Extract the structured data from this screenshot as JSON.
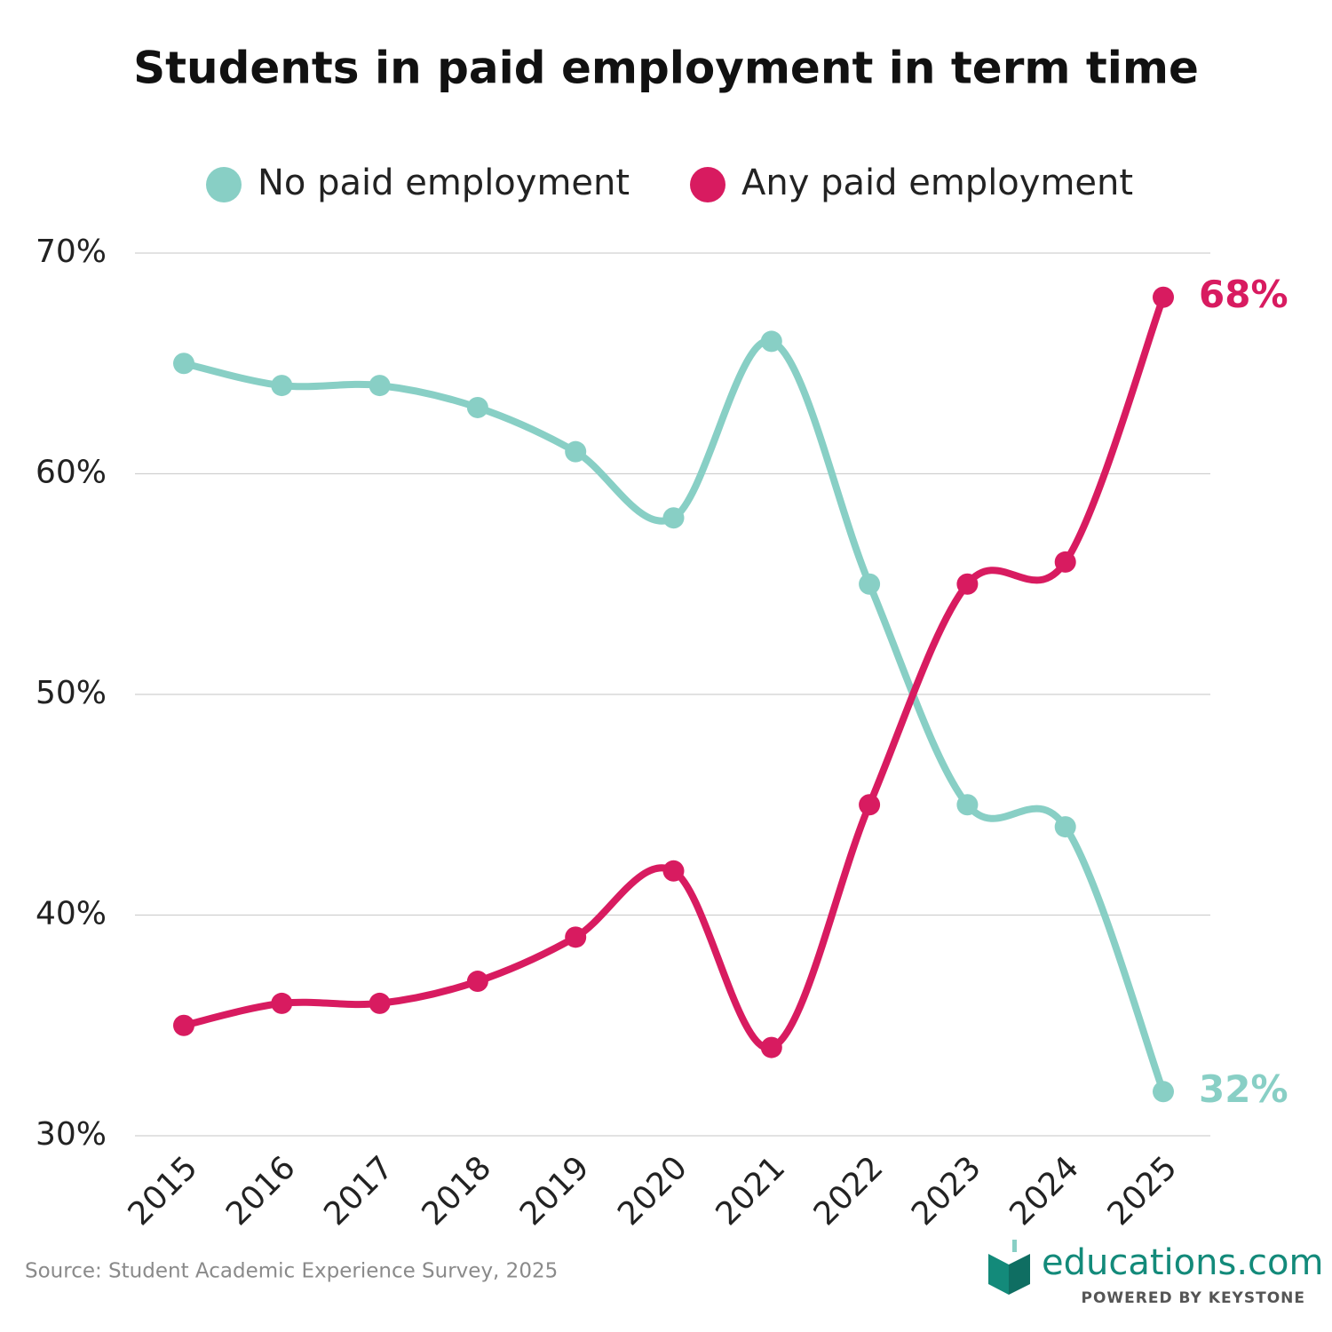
{
  "chart_data": {
    "type": "line",
    "title": "Students in paid employment in term time",
    "categories": [
      "2015",
      "2016",
      "2017",
      "2018",
      "2019",
      "2020",
      "2021",
      "2022",
      "2023",
      "2024",
      "2025"
    ],
    "series": [
      {
        "name": "No paid employment",
        "color": "#88cfc5",
        "values": [
          65,
          64,
          64,
          63,
          61,
          58,
          66,
          55,
          45,
          44,
          32
        ],
        "value_labels": [
          null,
          null,
          null,
          null,
          null,
          null,
          null,
          null,
          null,
          null,
          "32%"
        ]
      },
      {
        "name": "Any paid employment",
        "color": "#d81b60",
        "values": [
          35,
          36,
          36,
          37,
          39,
          42,
          34,
          45,
          55,
          56,
          68
        ],
        "value_labels": [
          null,
          null,
          null,
          null,
          null,
          null,
          null,
          null,
          null,
          null,
          "68%"
        ]
      }
    ],
    "ylim": [
      30,
      70
    ],
    "yticks": [
      {
        "value": 30,
        "label": "30%"
      },
      {
        "value": 40,
        "label": "40%"
      },
      {
        "value": 50,
        "label": "50%"
      },
      {
        "value": 60,
        "label": "60%"
      },
      {
        "value": 70,
        "label": "70%"
      }
    ],
    "grid": true,
    "legend": "top",
    "smooth": true
  },
  "footer": {
    "source": "Source: Student Academic Experience Survey, 2025",
    "logo": "educations.com",
    "tagline": "POWERED BY KEYSTONE"
  }
}
